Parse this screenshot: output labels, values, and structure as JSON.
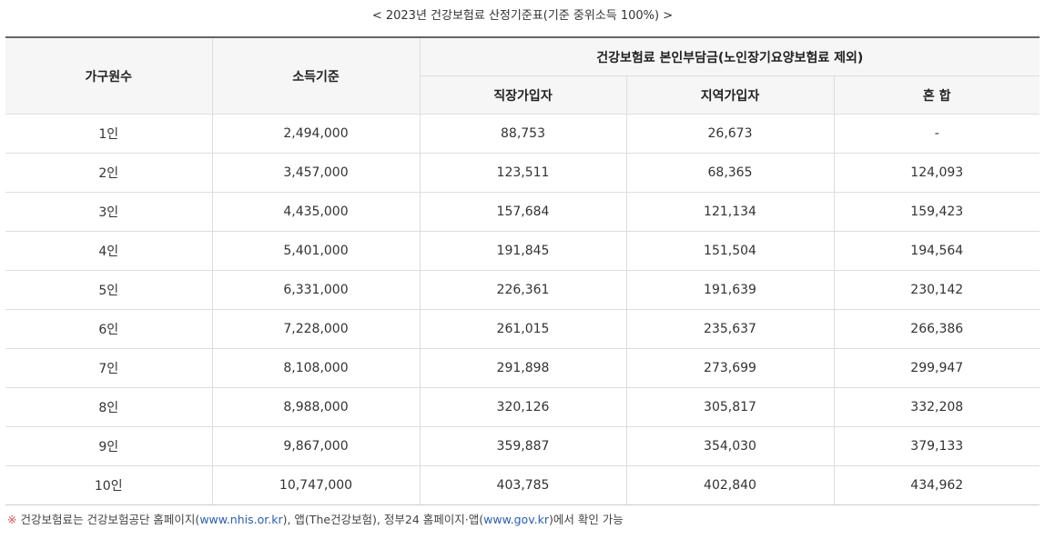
{
  "caption": "< 2023년 건강보험료 산정기준표(기준 중위소득 100%) >",
  "table": {
    "headers": {
      "household": "가구원수",
      "income": "소득기준",
      "group": "건강보험료 본인부담금(노인장기요양보험료 제외)",
      "employee": "직장가입자",
      "regional": "지역가입자",
      "mixed": "혼 합"
    },
    "rows": [
      {
        "household": "1인",
        "income": "2,494,000",
        "employee": "88,753",
        "regional": "26,673",
        "mixed": "-"
      },
      {
        "household": "2인",
        "income": "3,457,000",
        "employee": "123,511",
        "regional": "68,365",
        "mixed": "124,093"
      },
      {
        "household": "3인",
        "income": "4,435,000",
        "employee": "157,684",
        "regional": "121,134",
        "mixed": "159,423"
      },
      {
        "household": "4인",
        "income": "5,401,000",
        "employee": "191,845",
        "regional": "151,504",
        "mixed": "194,564"
      },
      {
        "household": "5인",
        "income": "6,331,000",
        "employee": "226,361",
        "regional": "191,639",
        "mixed": "230,142"
      },
      {
        "household": "6인",
        "income": "7,228,000",
        "employee": "261,015",
        "regional": "235,637",
        "mixed": "266,386"
      },
      {
        "household": "7인",
        "income": "8,108,000",
        "employee": "291,898",
        "regional": "273,699",
        "mixed": "299,947"
      },
      {
        "household": "8인",
        "income": "8,988,000",
        "employee": "320,126",
        "regional": "305,817",
        "mixed": "332,208"
      },
      {
        "household": "9인",
        "income": "9,867,000",
        "employee": "359,887",
        "regional": "354,030",
        "mixed": "379,133"
      },
      {
        "household": "10인",
        "income": "10,747,000",
        "employee": "403,785",
        "regional": "402,840",
        "mixed": "434,962"
      }
    ]
  },
  "footnote": {
    "mark": "※",
    "text1": "건강보험료는 건강보험공단 홈페이지(",
    "link1": "www.nhis.or.kr",
    "text2": "), 앱(The건강보험), 정부24 홈페이지·앱(",
    "link2": "www.gov.kr",
    "text3": ")에서 확인 가능"
  }
}
